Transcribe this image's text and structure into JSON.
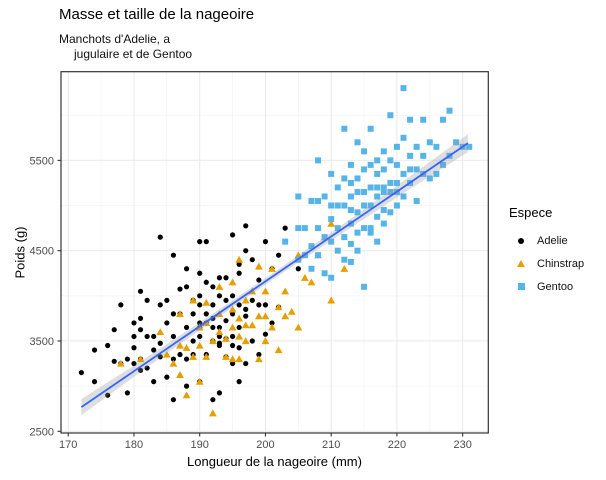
{
  "chart_data": {
    "type": "scatter",
    "title": "Masse et taille de la nageoire",
    "subtitle_lines": [
      "Manchots d'Adelie, a",
      "jugulaire et de Gentoo"
    ],
    "xlabel": "Longueur de la nageoire (mm)",
    "ylabel": "Poids (g)",
    "axes": {
      "x_domain": [
        168.9,
        233.9
      ],
      "y_domain": [
        2481,
        6482
      ],
      "x_major_ticks": [
        170,
        180,
        190,
        200,
        210,
        220,
        230
      ],
      "x_minor_ticks": [
        175,
        185,
        195,
        205,
        215,
        225
      ],
      "y_major_ticks": [
        2500,
        3500,
        4500,
        5500
      ],
      "y_minor_ticks": [
        3000,
        4000,
        5000,
        6000
      ],
      "grid": true,
      "major_grid_color": "#EBEBEB",
      "minor_grid_color": "#F3F3F3",
      "panel_border_color": "#333333",
      "tick_color": "#333333",
      "tick_label_color": "#4D4D4D"
    },
    "legend": {
      "title": "Espece",
      "position": "right"
    },
    "smooth": {
      "method": "lm",
      "line_color": "#3366FF",
      "ribbon_color": "#999999",
      "ribbon_opacity": 0.32,
      "x1": 172,
      "y1": 2768,
      "x2": 230.8,
      "y2": 5691,
      "ribbon_x": [
        172,
        180,
        190,
        201,
        212,
        222,
        230.8
      ],
      "ribbon_half_width_g": [
        90,
        62,
        42,
        36,
        48,
        70,
        100
      ]
    },
    "series": [
      {
        "name": "Adelie",
        "shape": "circle",
        "color": "#000000",
        "points": [
          [
            172,
            3150
          ],
          [
            174,
            3400
          ],
          [
            174,
            3050
          ],
          [
            176,
            2900
          ],
          [
            176,
            3450
          ],
          [
            177,
            3625
          ],
          [
            177,
            3275
          ],
          [
            178,
            3250
          ],
          [
            178,
            3900
          ],
          [
            179,
            3300
          ],
          [
            179,
            2925
          ],
          [
            180,
            3700
          ],
          [
            180,
            3550
          ],
          [
            180,
            3250
          ],
          [
            180,
            3425
          ],
          [
            181,
            3750
          ],
          [
            181,
            3625
          ],
          [
            181,
            3300
          ],
          [
            181,
            4050
          ],
          [
            181,
            3175
          ],
          [
            182,
            3200
          ],
          [
            182,
            3550
          ],
          [
            182,
            3950
          ],
          [
            183,
            3400
          ],
          [
            183,
            3550
          ],
          [
            183,
            3050
          ],
          [
            184,
            3325
          ],
          [
            184,
            3900
          ],
          [
            184,
            4650
          ],
          [
            184,
            3475
          ],
          [
            185,
            3700
          ],
          [
            185,
            3100
          ],
          [
            185,
            3950
          ],
          [
            186,
            3800
          ],
          [
            186,
            3300
          ],
          [
            186,
            3550
          ],
          [
            186,
            2850
          ],
          [
            186,
            4450
          ],
          [
            187,
            3350
          ],
          [
            187,
            3800
          ],
          [
            187,
            4075
          ],
          [
            188,
            3300
          ],
          [
            188,
            3650
          ],
          [
            188,
            3000
          ],
          [
            188,
            4300
          ],
          [
            188,
            4100
          ],
          [
            189,
            3500
          ],
          [
            189,
            3350
          ],
          [
            189,
            3950
          ],
          [
            189,
            3800
          ],
          [
            190,
            3650
          ],
          [
            190,
            4250
          ],
          [
            190,
            3050
          ],
          [
            190,
            3550
          ],
          [
            190,
            3900
          ],
          [
            190,
            4600
          ],
          [
            190,
            4000
          ],
          [
            190,
            3700
          ],
          [
            191,
            3800
          ],
          [
            191,
            3350
          ],
          [
            191,
            4600
          ],
          [
            191,
            4150
          ],
          [
            191,
            3700
          ],
          [
            192,
            3500
          ],
          [
            192,
            3750
          ],
          [
            192,
            4100
          ],
          [
            192,
            2850
          ],
          [
            192,
            3650
          ],
          [
            192,
            3900
          ],
          [
            193,
            3450
          ],
          [
            193,
            3475
          ],
          [
            193,
            4200
          ],
          [
            193,
            3650
          ],
          [
            193,
            2925
          ],
          [
            193,
            3550
          ],
          [
            193,
            4000
          ],
          [
            194,
            4200
          ],
          [
            194,
            3525
          ],
          [
            194,
            3325
          ],
          [
            194,
            3725
          ],
          [
            194,
            3950
          ],
          [
            195,
            3250
          ],
          [
            195,
            4675
          ],
          [
            195,
            3450
          ],
          [
            195,
            3550
          ],
          [
            195,
            3800
          ],
          [
            195,
            4000
          ],
          [
            196,
            3900
          ],
          [
            196,
            4350
          ],
          [
            196,
            3650
          ],
          [
            196,
            3425
          ],
          [
            196,
            4250
          ],
          [
            196,
            3050
          ],
          [
            197,
            4500
          ],
          [
            197,
            3775
          ],
          [
            197,
            4775
          ],
          [
            197,
            3850
          ],
          [
            197,
            3250
          ],
          [
            198,
            4400
          ],
          [
            198,
            3500
          ],
          [
            198,
            3950
          ],
          [
            199,
            3900
          ],
          [
            199,
            4175
          ],
          [
            199,
            3350
          ],
          [
            200,
            3900
          ],
          [
            200,
            4600
          ],
          [
            200,
            3575
          ],
          [
            201,
            4300
          ],
          [
            201,
            3700
          ],
          [
            202,
            3875
          ],
          [
            202,
            4450
          ],
          [
            203,
            4750
          ],
          [
            205,
            4300
          ]
        ]
      },
      {
        "name": "Chinstrap",
        "shape": "triangle",
        "color": "#E69F00",
        "points": [
          [
            178,
            3250
          ],
          [
            181,
            3300
          ],
          [
            184,
            3600
          ],
          [
            185,
            3350
          ],
          [
            186,
            3250
          ],
          [
            187,
            3450
          ],
          [
            187,
            3125
          ],
          [
            187,
            3800
          ],
          [
            188,
            3425
          ],
          [
            188,
            2900
          ],
          [
            189,
            3325
          ],
          [
            189,
            3950
          ],
          [
            190,
            3650
          ],
          [
            190,
            3450
          ],
          [
            190,
            3050
          ],
          [
            191,
            3700
          ],
          [
            191,
            3325
          ],
          [
            191,
            3925
          ],
          [
            192,
            2700
          ],
          [
            192,
            3500
          ],
          [
            193,
            3600
          ],
          [
            193,
            3800
          ],
          [
            193,
            4100
          ],
          [
            194,
            3525
          ],
          [
            194,
            3325
          ],
          [
            195,
            3300
          ],
          [
            195,
            3650
          ],
          [
            195,
            3850
          ],
          [
            195,
            4150
          ],
          [
            196,
            3550
          ],
          [
            196,
            3750
          ],
          [
            196,
            4400
          ],
          [
            196,
            3300
          ],
          [
            197,
            3500
          ],
          [
            197,
            3675
          ],
          [
            197,
            3950
          ],
          [
            198,
            3675
          ],
          [
            198,
            4050
          ],
          [
            199,
            3775
          ],
          [
            199,
            4325
          ],
          [
            199,
            3300
          ],
          [
            200,
            3775
          ],
          [
            200,
            4050
          ],
          [
            200,
            3500
          ],
          [
            201,
            3650
          ],
          [
            201,
            4300
          ],
          [
            202,
            3875
          ],
          [
            202,
            3400
          ],
          [
            203,
            4050
          ],
          [
            203,
            3775
          ],
          [
            204,
            3825
          ],
          [
            205,
            4450
          ],
          [
            205,
            3650
          ],
          [
            206,
            4200
          ],
          [
            207,
            4150
          ],
          [
            208,
            4450
          ],
          [
            209,
            4650
          ],
          [
            210,
            4800
          ],
          [
            210,
            3950
          ],
          [
            212,
            4300
          ]
        ]
      },
      {
        "name": "Gentoo",
        "shape": "square",
        "color": "#56B4E9",
        "points": [
          [
            203,
            4600
          ],
          [
            205,
            4400
          ],
          [
            205,
            5100
          ],
          [
            205,
            4750
          ],
          [
            206,
            4750
          ],
          [
            206,
            4450
          ],
          [
            207,
            4550
          ],
          [
            207,
            5050
          ],
          [
            207,
            4300
          ],
          [
            208,
            4450
          ],
          [
            208,
            4750
          ],
          [
            208,
            5500
          ],
          [
            208,
            5050
          ],
          [
            209,
            4650
          ],
          [
            209,
            5100
          ],
          [
            209,
            4250
          ],
          [
            210,
            4200
          ],
          [
            210,
            4600
          ],
          [
            210,
            4850
          ],
          [
            210,
            5350
          ],
          [
            210,
            5000
          ],
          [
            211,
            4500
          ],
          [
            211,
            4750
          ],
          [
            211,
            5000
          ],
          [
            211,
            5200
          ],
          [
            212,
            4400
          ],
          [
            212,
            4650
          ],
          [
            212,
            5300
          ],
          [
            212,
            5850
          ],
          [
            212,
            5000
          ],
          [
            213,
            4575
          ],
          [
            213,
            4800
          ],
          [
            213,
            5250
          ],
          [
            213,
            5450
          ],
          [
            213,
            4375
          ],
          [
            213,
            5100
          ],
          [
            213,
            4950
          ],
          [
            214,
            4700
          ],
          [
            214,
            4925
          ],
          [
            214,
            5300
          ],
          [
            214,
            5700
          ],
          [
            214,
            4500
          ],
          [
            214,
            5150
          ],
          [
            215,
            4750
          ],
          [
            215,
            5000
          ],
          [
            215,
            5600
          ],
          [
            215,
            5400
          ],
          [
            215,
            4100
          ],
          [
            215,
            5150
          ],
          [
            216,
            4700
          ],
          [
            216,
            5000
          ],
          [
            216,
            5200
          ],
          [
            216,
            5850
          ],
          [
            216,
            5450
          ],
          [
            216,
            4750
          ],
          [
            217,
            4875
          ],
          [
            217,
            5100
          ],
          [
            217,
            5350
          ],
          [
            217,
            4600
          ],
          [
            217,
            5500
          ],
          [
            217,
            5200
          ],
          [
            218,
            4950
          ],
          [
            218,
            5200
          ],
          [
            218,
            5600
          ],
          [
            218,
            5150
          ],
          [
            218,
            4800
          ],
          [
            218,
            5400
          ],
          [
            219,
            4925
          ],
          [
            219,
            5250
          ],
          [
            219,
            6000
          ],
          [
            219,
            5500
          ],
          [
            219,
            5150
          ],
          [
            220,
            5000
          ],
          [
            220,
            5250
          ],
          [
            220,
            5650
          ],
          [
            220,
            5150
          ],
          [
            220,
            5450
          ],
          [
            221,
            5100
          ],
          [
            221,
            5350
          ],
          [
            221,
            5750
          ],
          [
            221,
            6300
          ],
          [
            222,
            5250
          ],
          [
            222,
            5550
          ],
          [
            222,
            5950
          ],
          [
            222,
            5400
          ],
          [
            223,
            5050
          ],
          [
            223,
            5400
          ],
          [
            223,
            5650
          ],
          [
            224,
            5350
          ],
          [
            224,
            5550
          ],
          [
            224,
            5950
          ],
          [
            225,
            5300
          ],
          [
            225,
            5700
          ],
          [
            226,
            5350
          ],
          [
            226,
            5650
          ],
          [
            227,
            5450
          ],
          [
            227,
            5950
          ],
          [
            228,
            5550
          ],
          [
            228,
            6050
          ],
          [
            229,
            5700
          ],
          [
            230,
            5650
          ],
          [
            231,
            5650
          ]
        ]
      }
    ]
  }
}
